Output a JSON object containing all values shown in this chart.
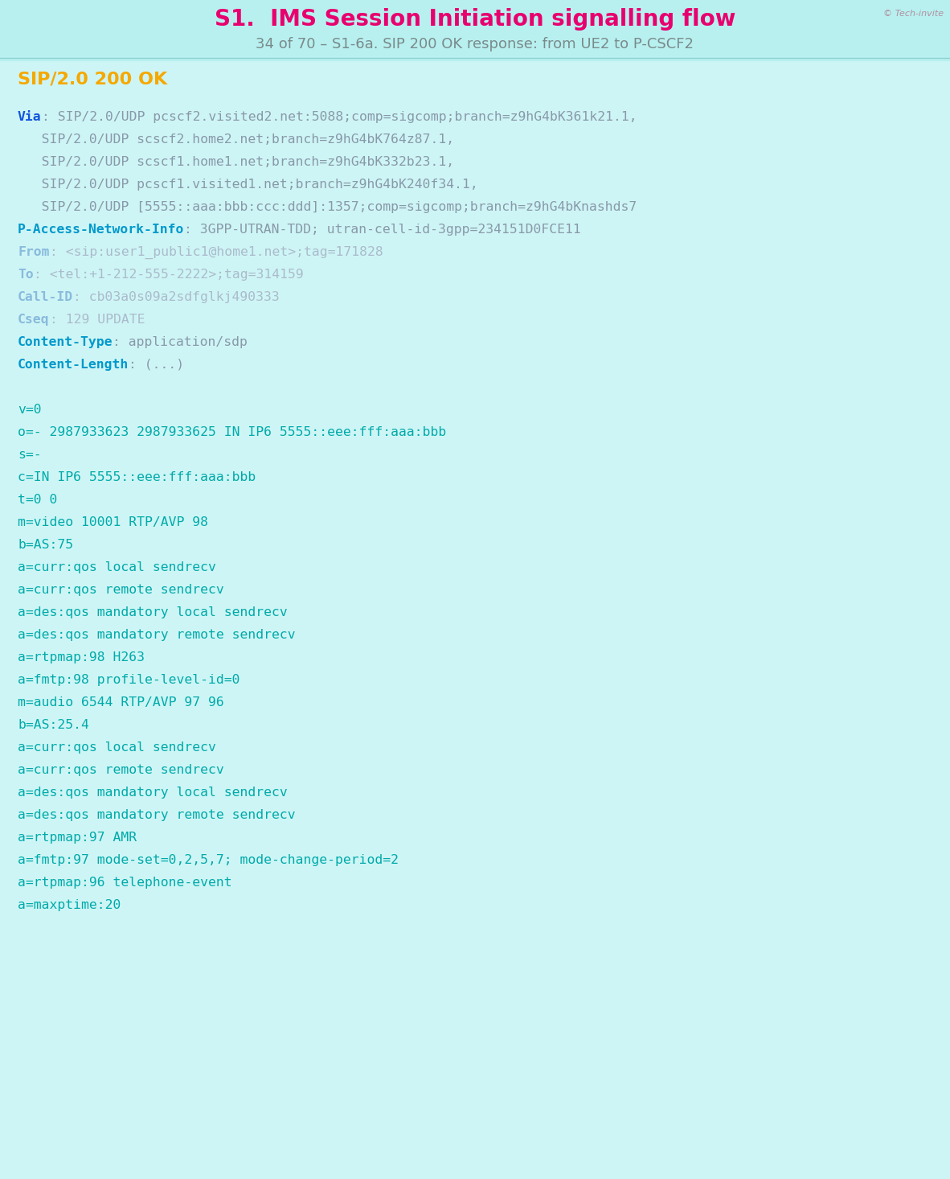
{
  "bg_color": "#cef5f5",
  "title": "S1.  IMS Session Initiation signalling flow",
  "subtitle": "34 of 70 – S1-6a. SIP 200 OK response: from UE2 to P-CSCF2",
  "copyright": "© Tech-invite",
  "title_color": "#e8006e",
  "subtitle_color": "#7a8a8a",
  "copyright_color": "#b090a0",
  "sip_status_line": "SIP/2.0 200 OK",
  "sip_status_color": "#f5a800",
  "figsize": [
    11.82,
    14.66
  ],
  "dpi": 100,
  "header_lines": [
    [
      {
        "text": "Via",
        "color": "#1155dd",
        "bold": true
      },
      {
        "text": ": SIP/2.0/UDP pcscf2.visited2.net:5088;comp=sigcomp;branch=z9hG4bK361k21.1,",
        "color": "#8899aa",
        "bold": false
      }
    ],
    [
      {
        "text": "   SIP/2.0/UDP scscf2.home2.net;branch=z9hG4bK764z87.1,",
        "color": "#8899aa",
        "bold": false
      }
    ],
    [
      {
        "text": "   SIP/2.0/UDP scscf1.home1.net;branch=z9hG4bK332b23.1,",
        "color": "#8899aa",
        "bold": false
      }
    ],
    [
      {
        "text": "   SIP/2.0/UDP pcscf1.visited1.net;branch=z9hG4bK240f34.1,",
        "color": "#8899aa",
        "bold": false
      }
    ],
    [
      {
        "text": "   SIP/2.0/UDP [5555::aaa:bbb:ccc:ddd]:1357;comp=sigcomp;branch=z9hG4bKnashds7",
        "color": "#8899aa",
        "bold": false
      }
    ],
    [
      {
        "text": "P-Access-Network-Info",
        "color": "#0099cc",
        "bold": true
      },
      {
        "text": ": 3GPP-UTRAN-TDD; utran-cell-id-3gpp=234151D0FCE11",
        "color": "#8899aa",
        "bold": false
      }
    ],
    [
      {
        "text": "From",
        "color": "#88bbdd",
        "bold": true
      },
      {
        "text": ": <sip:user1_public1@home1.net>;tag=171828",
        "color": "#aabbcc",
        "bold": false
      }
    ],
    [
      {
        "text": "To",
        "color": "#88bbdd",
        "bold": true
      },
      {
        "text": ": <tel:+1-212-555-2222>;tag=314159",
        "color": "#aabbcc",
        "bold": false
      }
    ],
    [
      {
        "text": "Call-ID",
        "color": "#88bbdd",
        "bold": true
      },
      {
        "text": ": cb03a0s09a2sdfglkj490333",
        "color": "#aabbcc",
        "bold": false
      }
    ],
    [
      {
        "text": "Cseq",
        "color": "#88bbdd",
        "bold": true
      },
      {
        "text": ": 129 UPDATE",
        "color": "#aabbcc",
        "bold": false
      }
    ],
    [
      {
        "text": "Content-Type",
        "color": "#0099cc",
        "bold": true
      },
      {
        "text": ": application/sdp",
        "color": "#8899aa",
        "bold": false
      }
    ],
    [
      {
        "text": "Content-Length",
        "color": "#0099cc",
        "bold": true
      },
      {
        "text": ": (...)",
        "color": "#8899aa",
        "bold": false
      }
    ]
  ],
  "sdp_lines": [
    "v=0",
    "o=- 2987933623 2987933625 IN IP6 5555::eee:fff:aaa:bbb",
    "s=-",
    "c=IN IP6 5555::eee:fff:aaa:bbb",
    "t=0 0",
    "m=video 10001 RTP/AVP 98",
    "b=AS:75",
    "a=curr:qos local sendrecv",
    "a=curr:qos remote sendrecv",
    "a=des:qos mandatory local sendrecv",
    "a=des:qos mandatory remote sendrecv",
    "a=rtpmap:98 H263",
    "a=fmtp:98 profile-level-id=0",
    "m=audio 6544 RTP/AVP 97 96",
    "b=AS:25.4",
    "a=curr:qos local sendrecv",
    "a=curr:qos remote sendrecv",
    "a=des:qos mandatory local sendrecv",
    "a=des:qos mandatory remote sendrecv",
    "a=rtpmap:97 AMR",
    "a=fmtp:97 mode-set=0,2,5,7; mode-change-period=2",
    "a=rtpmap:96 telephone-event",
    "a=maxptime:20"
  ],
  "sdp_color": "#00aaaa"
}
